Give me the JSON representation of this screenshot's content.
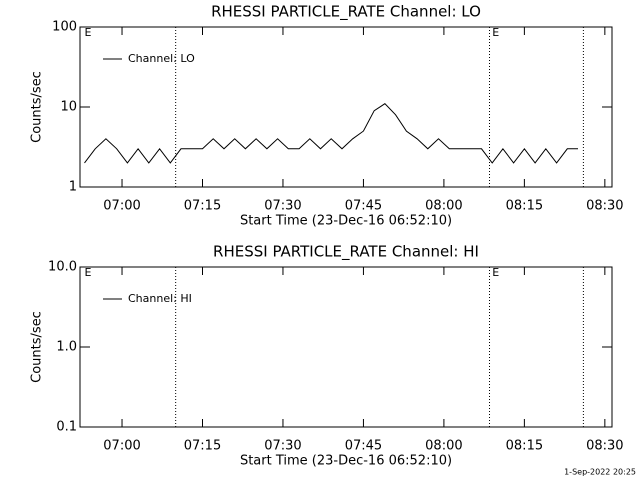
{
  "chart_data": [
    {
      "type": "line",
      "title": "RHESSI PARTICLE_RATE Channel: LO",
      "xlabel": "Start Time (23-Dec-16 06:52:10)",
      "ylabel": "Counts/sec",
      "log_y": true,
      "xlim": [
        "06:52:10",
        "08:31:20"
      ],
      "xticks": [
        "07:00",
        "07:15",
        "07:30",
        "07:45",
        "08:00",
        "08:15",
        "08:30"
      ],
      "ylim": [
        1,
        100
      ],
      "yticks": [
        1,
        10,
        100
      ],
      "legend": "upper left",
      "event_lines": [
        "07:10",
        "08:08:30",
        "08:26"
      ],
      "annotations": [
        {
          "text": "E",
          "x": "06:53"
        },
        {
          "text": "E",
          "x": "08:09"
        }
      ],
      "series": [
        {
          "name": "Channel: LO",
          "color": "#000000",
          "x": [
            "06:53",
            "06:55",
            "06:57",
            "06:59",
            "07:01",
            "07:03",
            "07:05",
            "07:07",
            "07:09",
            "07:11",
            "07:13",
            "07:15",
            "07:17",
            "07:19",
            "07:21",
            "07:23",
            "07:25",
            "07:27",
            "07:29",
            "07:31",
            "07:33",
            "07:35",
            "07:37",
            "07:39",
            "07:41",
            "07:43",
            "07:45",
            "07:47",
            "07:49",
            "07:51",
            "07:53",
            "07:55",
            "07:57",
            "07:59",
            "08:01",
            "08:03",
            "08:05",
            "08:07",
            "08:09",
            "08:11",
            "08:13",
            "08:15",
            "08:17",
            "08:19",
            "08:21",
            "08:23",
            "08:25"
          ],
          "values": [
            2,
            3,
            4,
            3,
            2,
            3,
            2,
            3,
            2,
            3,
            3,
            3,
            4,
            3,
            4,
            3,
            4,
            3,
            4,
            3,
            3,
            4,
            3,
            4,
            3,
            4,
            5,
            9,
            11,
            8,
            5,
            4,
            3,
            4,
            3,
            3,
            3,
            3,
            2,
            3,
            2,
            3,
            2,
            3,
            2,
            3,
            3
          ]
        }
      ]
    },
    {
      "type": "line",
      "title": "RHESSI PARTICLE_RATE Channel: HI",
      "xlabel": "Start Time (23-Dec-16 06:52:10)",
      "ylabel": "Counts/sec",
      "log_y": true,
      "xlim": [
        "06:52:10",
        "08:31:20"
      ],
      "xticks": [
        "07:00",
        "07:15",
        "07:30",
        "07:45",
        "08:00",
        "08:15",
        "08:30"
      ],
      "ylim": [
        0.1,
        10
      ],
      "yticks": [
        0.1,
        {
          "value": 1,
          "label": "1.0"
        },
        {
          "value": 10,
          "label": "10.0"
        }
      ],
      "legend": "upper left",
      "event_lines": [
        "07:10",
        "08:08:30",
        "08:26"
      ],
      "annotations": [
        {
          "text": "E",
          "x": "06:53"
        },
        {
          "text": "E",
          "x": "08:09"
        }
      ],
      "series": [
        {
          "name": "Channel: HI",
          "color": "#000000",
          "x": [],
          "values": []
        }
      ]
    }
  ],
  "footer": "1-Sep-2022 20:25"
}
